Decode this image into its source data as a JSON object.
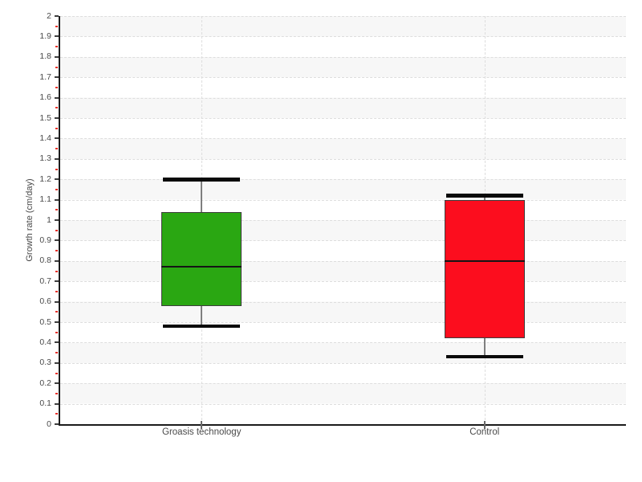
{
  "chart_data": {
    "type": "boxplot",
    "title": "",
    "xlabel": "",
    "ylabel": "Growth rate (cm/day)",
    "ylim": [
      0,
      2
    ],
    "ytick_step": 0.1,
    "yminor_step": 0.05,
    "grid": "dashed horizontal lines every 0.1, alternating light-gray bands, dashed vertical line at each category center",
    "legend": "none",
    "categories": [
      "Groasis technology",
      "Control"
    ],
    "series": [
      {
        "name": "Groasis technology",
        "box_color": "#2aa712",
        "low": 0.48,
        "q1": 0.58,
        "median": 0.77,
        "q3": 1.04,
        "high": 1.2
      },
      {
        "name": "Control",
        "box_color": "#fc0d1e",
        "low": 0.33,
        "q1": 0.42,
        "median": 0.8,
        "q3": 1.1,
        "high": 1.12
      }
    ],
    "colors": {
      "band_gray": "#f7f7f7",
      "grid_dash": "#dedede",
      "axis_line": "#1c1c1c",
      "major_tick": "#3f3f3f",
      "minor_tick": "#e8312a",
      "tick_label": "#4a4a4a",
      "whisker_line": "#7f7f7f",
      "whisker_cap": "#0a0a0a",
      "box_border": "#3d3d3d",
      "median_line": "#151515"
    }
  }
}
